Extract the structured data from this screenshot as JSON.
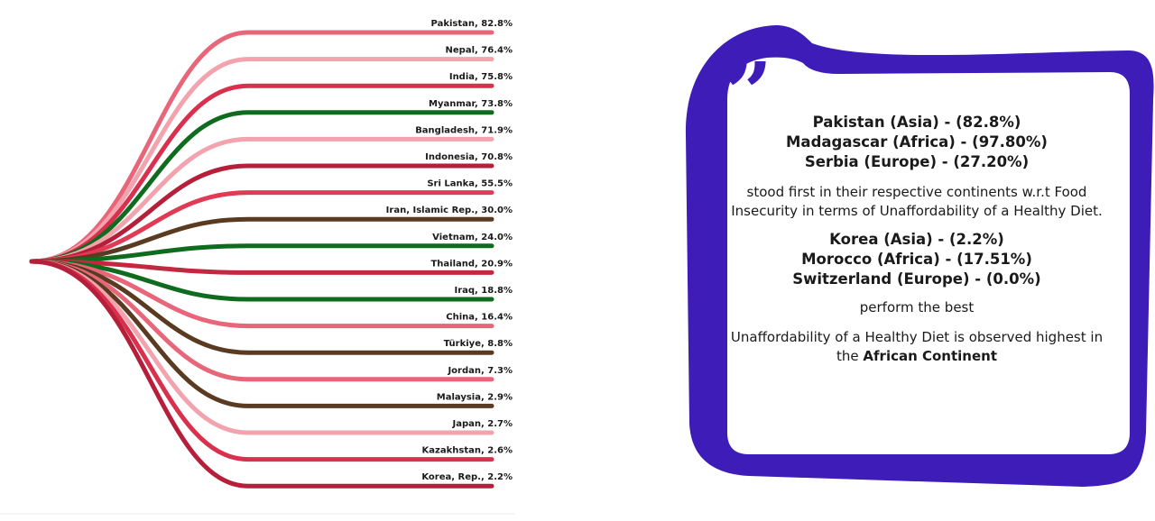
{
  "chart_data": {
    "type": "line",
    "series": [
      {
        "label": "Pakistan, 82.8%",
        "value": 82.8,
        "color": "#e8667a"
      },
      {
        "label": "Nepal, 76.4%",
        "value": 76.4,
        "color": "#f2a3ad"
      },
      {
        "label": "India, 75.8%",
        "value": 75.8,
        "color": "#d9304d"
      },
      {
        "label": "Myanmar, 73.8%",
        "value": 73.8,
        "color": "#0f6b1e"
      },
      {
        "label": "Bangladesh, 71.9%",
        "value": 71.9,
        "color": "#f2a3ad"
      },
      {
        "label": "Indonesia, 70.8%",
        "value": 70.8,
        "color": "#b51f3a"
      },
      {
        "label": "Sri Lanka, 55.5%",
        "value": 55.5,
        "color": "#e03a55"
      },
      {
        "label": "Iran, Islamic Rep., 30.0%",
        "value": 30.0,
        "color": "#5a3a20"
      },
      {
        "label": "Vietnam, 24.0%",
        "value": 24.0,
        "color": "#0f6b1e"
      },
      {
        "label": "Thailand, 20.9%",
        "value": 20.9,
        "color": "#c42840"
      },
      {
        "label": "Iraq, 18.8%",
        "value": 18.8,
        "color": "#0f6b1e"
      },
      {
        "label": "China, 16.4%",
        "value": 16.4,
        "color": "#e8667a"
      },
      {
        "label": "Türkiye, 8.8%",
        "value": 8.8,
        "color": "#5a3a20"
      },
      {
        "label": "Jordan, 7.3%",
        "value": 7.3,
        "color": "#e8667a"
      },
      {
        "label": "Malaysia, 2.9%",
        "value": 2.9,
        "color": "#5a3a20"
      },
      {
        "label": "Japan, 2.7%",
        "value": 2.7,
        "color": "#f2a3ad"
      },
      {
        "label": "Kazakhstan, 2.6%",
        "value": 2.6,
        "color": "#d9304d"
      },
      {
        "label": "Korea, Rep., 2.2%",
        "value": 2.2,
        "color": "#b51f3a"
      }
    ]
  },
  "card": {
    "border_color": "#3d1cb8",
    "top_lines": [
      "Pakistan (Asia) - (82.8%)",
      "Madagascar (Africa) - (97.80%)",
      "Serbia (Europe) - (27.20%)"
    ],
    "middle_text": "stood first in their respective continents w.r.t Food Insecurity in terms of Unaffordability of a Healthy Diet.",
    "bottom_lines": [
      "Korea (Asia) - (2.2%)",
      "Morocco (Africa) - (17.51%)",
      "Switzerland (Europe) - (0.0%)"
    ],
    "perform_text": "perform the best",
    "final_text_prefix": "Unaffordability of a Healthy Diet is observed highest in the",
    "final_text_bold": "African Continent"
  }
}
